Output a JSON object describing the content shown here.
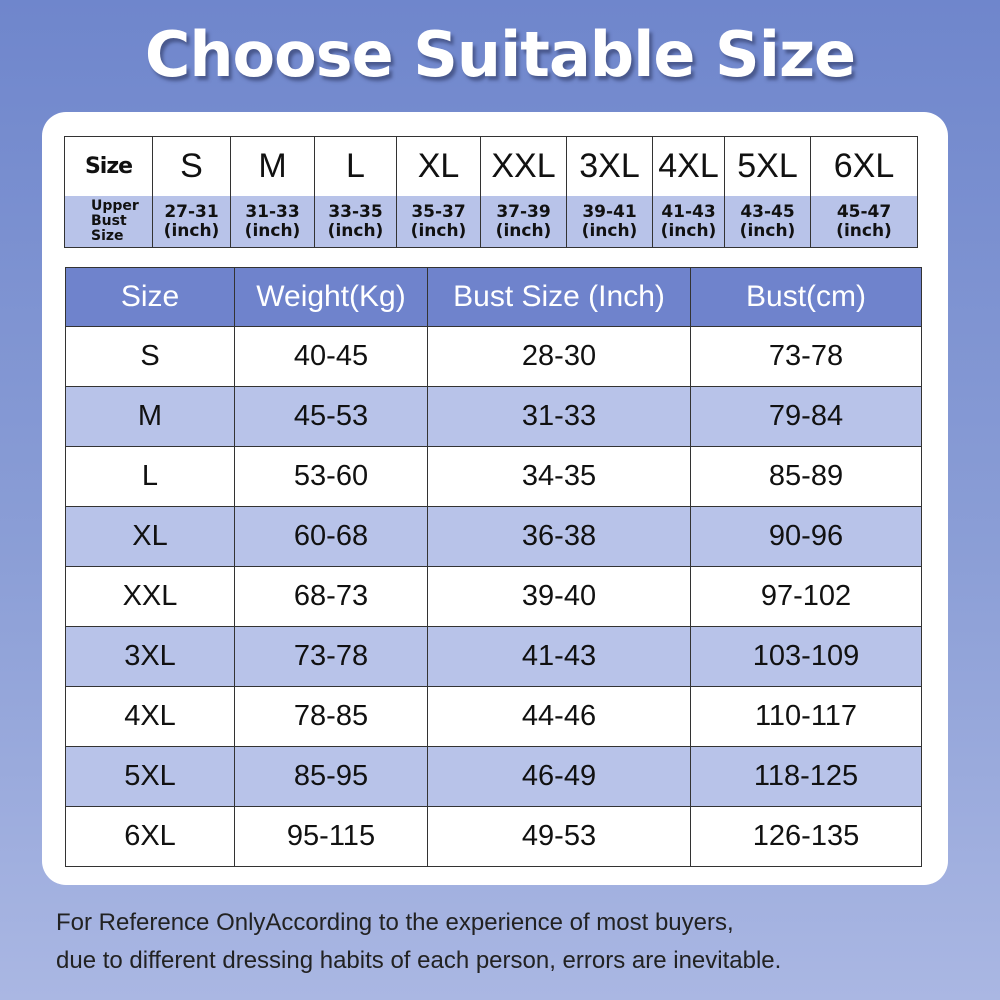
{
  "title": "Choose Suitable Size",
  "upper_bust": {
    "size_label": "Size",
    "row_label": [
      "Upper",
      "Bust",
      "Size"
    ],
    "sizes": [
      "S",
      "M",
      "L",
      "XL",
      "XXL",
      "3XL",
      "4XL",
      "5XL",
      "6XL"
    ],
    "ranges": [
      "27-31",
      "31-33",
      "33-35",
      "35-37",
      "37-39",
      "39-41",
      "41-43",
      "43-45",
      "45-47"
    ],
    "unit": "(inch)"
  },
  "size_table": {
    "headers": [
      "Size",
      "Weight(Kg)",
      "Bust Size (Inch)",
      "Bust(cm)"
    ],
    "rows": [
      [
        "S",
        "40-45",
        "28-30",
        "73-78"
      ],
      [
        "M",
        "45-53",
        "31-33",
        "79-84"
      ],
      [
        "L",
        "53-60",
        "34-35",
        "85-89"
      ],
      [
        "XL",
        "60-68",
        "36-38",
        "90-96"
      ],
      [
        "XXL",
        "68-73",
        "39-40",
        "97-102"
      ],
      [
        "3XL",
        "73-78",
        "41-43",
        "103-109"
      ],
      [
        "4XL",
        "78-85",
        "44-46",
        "110-117"
      ],
      [
        "5XL",
        "85-95",
        "46-49",
        "118-125"
      ],
      [
        "6XL",
        "95-115",
        "49-53",
        "126-135"
      ]
    ]
  },
  "footer": {
    "line1": "For Reference OnlyAccording to the experience of most buyers,",
    "line2": "due to different dressing habits of each person, errors are inevitable."
  },
  "colors": {
    "header_blue": "#6f83cc",
    "row_lavender": "#b8c3e9",
    "background_top": "#6f86cc",
    "background_bottom": "#aab7e3"
  }
}
